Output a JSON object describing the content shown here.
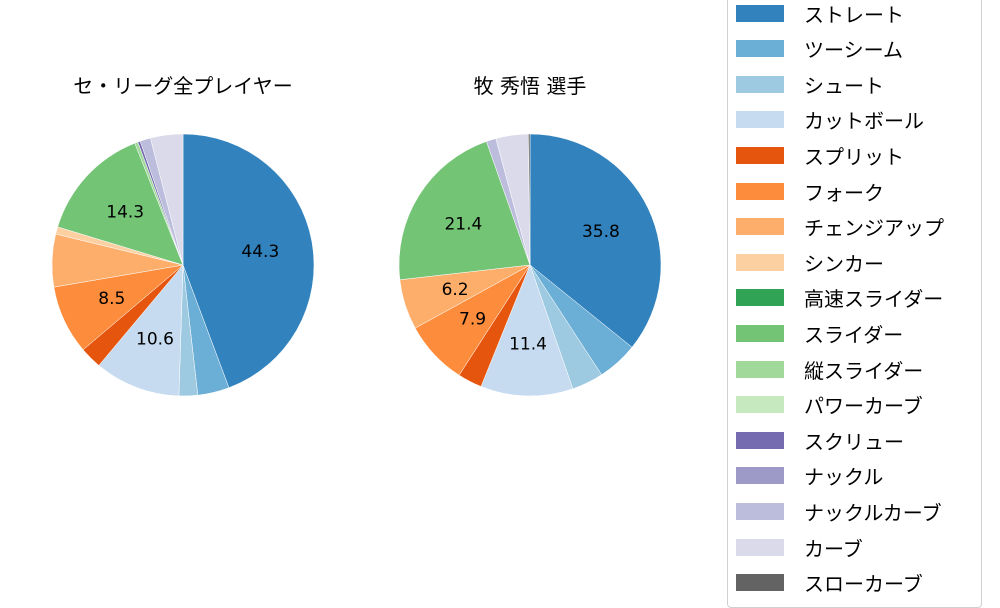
{
  "chart_data": [
    {
      "type": "pie",
      "title": "セ・リーグ全プレイヤー",
      "labels": [
        "ストレート",
        "ツーシーム",
        "シュート",
        "カットボール",
        "スプリット",
        "フォーク",
        "チェンジアップ",
        "シンカー",
        "スライダー",
        "縦スライダー",
        "スクリュー",
        "ナックルカーブ",
        "カーブ"
      ],
      "values": [
        44.3,
        3.9,
        2.3,
        10.6,
        2.7,
        8.5,
        6.5,
        0.9,
        14.3,
        0.4,
        0.3,
        1.3,
        4.0
      ],
      "shown_labels": {
        "ストレート": "44.3",
        "カットボール": "10.6",
        "フォーク": "8.5",
        "スライダー": "14.3"
      },
      "start_angle": 90,
      "direction": "clockwise"
    },
    {
      "type": "pie",
      "title": "牧 秀悟  選手",
      "labels": [
        "ストレート",
        "ツーシーム",
        "シュート",
        "カットボール",
        "スプリット",
        "フォーク",
        "チェンジアップ",
        "スライダー",
        "ナックルカーブ",
        "カーブ",
        "スローカーブ"
      ],
      "values": [
        35.8,
        5.0,
        3.9,
        11.4,
        3.0,
        7.9,
        6.2,
        21.4,
        1.2,
        4.0,
        0.2
      ],
      "shown_labels": {
        "ストレート": "35.8",
        "カットボール": "11.4",
        "フォーク": "7.9",
        "チェンジアップ": "6.2",
        "スライダー": "21.4"
      },
      "start_angle": 90,
      "direction": "clockwise"
    }
  ],
  "titles": {
    "left": "セ・リーグ全プレイヤー",
    "right": "牧 秀悟  選手"
  },
  "legend": {
    "position": "right",
    "items": [
      {
        "label": "ストレート",
        "color": "#3182bd"
      },
      {
        "label": "ツーシーム",
        "color": "#6baed6"
      },
      {
        "label": "シュート",
        "color": "#9ecae1"
      },
      {
        "label": "カットボール",
        "color": "#c6dbef"
      },
      {
        "label": "スプリット",
        "color": "#e6550d"
      },
      {
        "label": "フォーク",
        "color": "#fd8d3c"
      },
      {
        "label": "チェンジアップ",
        "color": "#fdae6b"
      },
      {
        "label": "シンカー",
        "color": "#fdd0a2"
      },
      {
        "label": "高速スライダー",
        "color": "#31a354"
      },
      {
        "label": "スライダー",
        "color": "#74c476"
      },
      {
        "label": "縦スライダー",
        "color": "#a1d99b"
      },
      {
        "label": "パワーカーブ",
        "color": "#c7e9c0"
      },
      {
        "label": "スクリュー",
        "color": "#756bb1"
      },
      {
        "label": "ナックル",
        "color": "#9e9ac8"
      },
      {
        "label": "ナックルカーブ",
        "color": "#bcbddc"
      },
      {
        "label": "カーブ",
        "color": "#dadaeb"
      },
      {
        "label": "スローカーブ",
        "color": "#636363"
      }
    ]
  }
}
